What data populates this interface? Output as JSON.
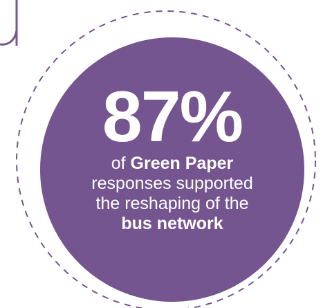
{
  "stat": {
    "value": "87%",
    "caption": {
      "line1_prefix": "of ",
      "line1_bold": "Green Paper",
      "line2": "responses supported",
      "line3": "the reshaping of the",
      "line4_bold": "bus network"
    }
  },
  "colors": {
    "circle_fill": "#74558f",
    "ring_stroke": "#74558f",
    "text": "#ffffff",
    "letter_stroke": "#74558f"
  }
}
